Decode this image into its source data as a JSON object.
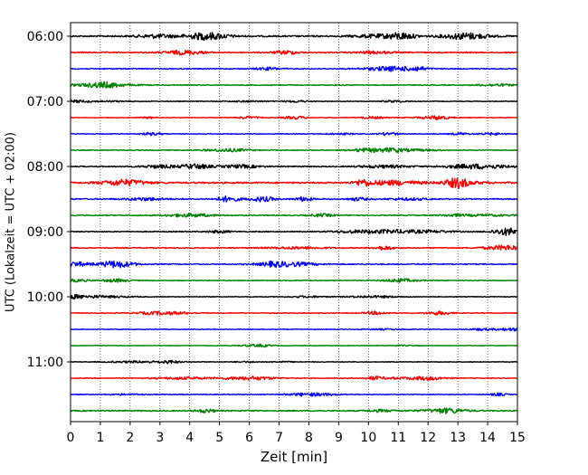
{
  "chart_data": {
    "type": "line",
    "title": "",
    "xlabel": "Zeit  [min]",
    "ylabel": "UTC (Lokalzeit = UTC + 02:00)",
    "xlim": [
      0,
      15
    ],
    "x_ticks": [
      0,
      1,
      2,
      3,
      4,
      5,
      6,
      7,
      8,
      9,
      10,
      11,
      12,
      13,
      14,
      15
    ],
    "x_tick_labels": [
      "0",
      "1",
      "2",
      "3",
      "4",
      "5",
      "6",
      "7",
      "8",
      "9",
      "10",
      "11",
      "12",
      "13",
      "14",
      "15"
    ],
    "y_tick_labels": [
      "06:00",
      "07:00",
      "08:00",
      "09:00",
      "10:00",
      "11:00"
    ],
    "grid": "vertical dotted at each minute",
    "line_colors": [
      "#000000",
      "#ff0000",
      "#0000ff",
      "#008000"
    ],
    "traces": [
      {
        "time": "06:00",
        "color": "#000000",
        "amplitude": 0.28
      },
      {
        "time": "06:15",
        "color": "#ff0000",
        "amplitude": 0.22
      },
      {
        "time": "06:30",
        "color": "#0000ff",
        "amplitude": 0.2
      },
      {
        "time": "06:45",
        "color": "#008000",
        "amplitude": 0.16
      },
      {
        "time": "07:00",
        "color": "#000000",
        "amplitude": 0.12
      },
      {
        "time": "07:15",
        "color": "#ff0000",
        "amplitude": 0.12
      },
      {
        "time": "07:30",
        "color": "#0000ff",
        "amplitude": 0.14
      },
      {
        "time": "07:45",
        "color": "#008000",
        "amplitude": 0.14
      },
      {
        "time": "08:00",
        "color": "#000000",
        "amplitude": 0.2
      },
      {
        "time": "08:15",
        "color": "#ff0000",
        "amplitude": 0.3
      },
      {
        "time": "08:30",
        "color": "#0000ff",
        "amplitude": 0.22
      },
      {
        "time": "08:45",
        "color": "#008000",
        "amplitude": 0.18
      },
      {
        "time": "09:00",
        "color": "#000000",
        "amplitude": 0.18
      },
      {
        "time": "09:15",
        "color": "#ff0000",
        "amplitude": 0.2
      },
      {
        "time": "09:30",
        "color": "#0000ff",
        "amplitude": 0.2
      },
      {
        "time": "09:45",
        "color": "#008000",
        "amplitude": 0.14
      },
      {
        "time": "10:00",
        "color": "#000000",
        "amplitude": 0.12
      },
      {
        "time": "10:15",
        "color": "#ff0000",
        "amplitude": 0.14
      },
      {
        "time": "10:30",
        "color": "#0000ff",
        "amplitude": 0.12
      },
      {
        "time": "10:45",
        "color": "#008000",
        "amplitude": 0.1
      },
      {
        "time": "11:00",
        "color": "#000000",
        "amplitude": 0.12
      },
      {
        "time": "11:15",
        "color": "#ff0000",
        "amplitude": 0.16
      },
      {
        "time": "11:30",
        "color": "#0000ff",
        "amplitude": 0.14
      },
      {
        "time": "11:45",
        "color": "#008000",
        "amplitude": 0.22
      }
    ]
  }
}
